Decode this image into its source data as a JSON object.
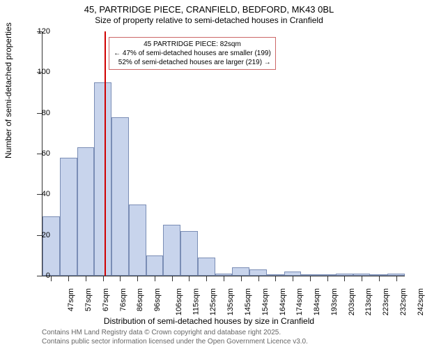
{
  "title_main": "45, PARTRIDGE PIECE, CRANFIELD, BEDFORD, MK43 0BL",
  "title_sub": "Size of property relative to semi-detached houses in Cranfield",
  "y_axis_title": "Number of semi-detached properties",
  "x_axis_title": "Distribution of semi-detached houses by size in Cranfield",
  "footer_line1": "Contains HM Land Registry data © Crown copyright and database right 2025.",
  "footer_line2": "Contains public sector information licensed under the Open Government Licence v3.0.",
  "callout_line1": "45 PARTRIDGE PIECE: 82sqm",
  "callout_line2": "← 47% of semi-detached houses are smaller (199)",
  "callout_line3": "52% of semi-detached houses are larger (219) →",
  "chart": {
    "type": "histogram",
    "bar_fill": "#c8d4ec",
    "bar_stroke": "#7a8db5",
    "background": "#ffffff",
    "axis_color": "#333333",
    "marker_color": "#d00000",
    "callout_border": "#cc6666",
    "ylim": [
      0,
      120
    ],
    "yticks": [
      0,
      20,
      40,
      60,
      80,
      100,
      120
    ],
    "categories": [
      "47sqm",
      "57sqm",
      "67sqm",
      "76sqm",
      "86sqm",
      "96sqm",
      "106sqm",
      "115sqm",
      "125sqm",
      "135sqm",
      "145sqm",
      "154sqm",
      "164sqm",
      "174sqm",
      "184sqm",
      "193sqm",
      "203sqm",
      "213sqm",
      "223sqm",
      "232sqm",
      "242sqm"
    ],
    "values": [
      29,
      58,
      63,
      95,
      78,
      35,
      10,
      25,
      22,
      9,
      1,
      4,
      3,
      0,
      2,
      0,
      0,
      1,
      1,
      0,
      1
    ],
    "marker_index": 3.6,
    "title_fontsize": 13,
    "label_fontsize": 11,
    "axis_title_fontsize": 12
  }
}
